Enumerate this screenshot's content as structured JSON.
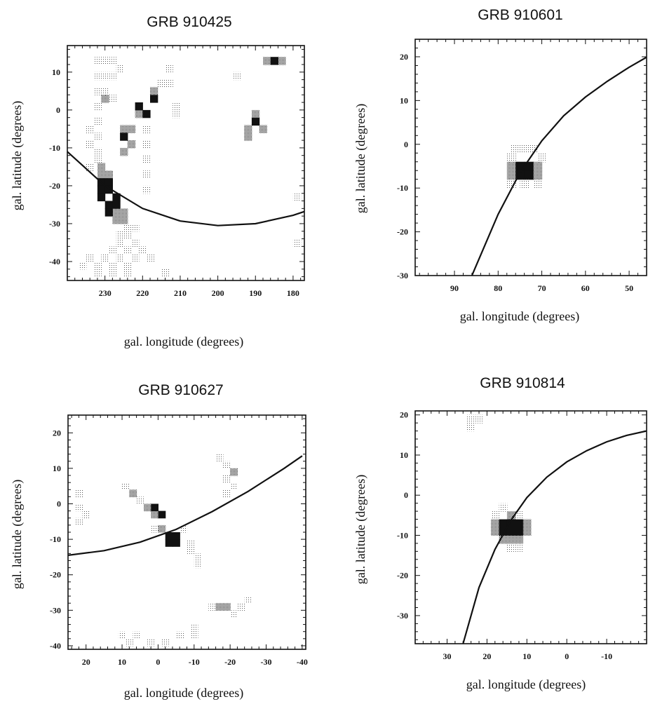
{
  "figure": {
    "background": "#ffffff",
    "ink": "#111111"
  },
  "chart_data": [
    {
      "type": "heatmap",
      "title": "GRB 910425",
      "xlabel": "gal. longitude (degrees)",
      "ylabel": "gal. latitude (degrees)",
      "xlim": [
        240,
        177
      ],
      "ylim": [
        -45,
        17
      ],
      "xticks": [
        230,
        220,
        210,
        200,
        190,
        180
      ],
      "yticks": [
        10,
        0,
        -10,
        -20,
        -30,
        -40
      ],
      "curve": [
        [
          240,
          -11
        ],
        [
          230,
          -20
        ],
        [
          220,
          -26
        ],
        [
          210,
          -29.3
        ],
        [
          200,
          -30.5
        ],
        [
          190,
          -30
        ],
        [
          180,
          -27.8
        ],
        [
          177,
          -26.8
        ]
      ],
      "cells": [
        [
          232,
          13,
          1
        ],
        [
          230,
          13,
          1
        ],
        [
          228,
          13,
          1
        ],
        [
          226,
          11,
          1
        ],
        [
          232,
          9,
          1
        ],
        [
          230,
          9,
          1
        ],
        [
          228,
          9,
          1
        ],
        [
          230,
          5,
          1
        ],
        [
          232,
          5,
          1
        ],
        [
          230,
          3,
          2
        ],
        [
          228,
          3,
          1
        ],
        [
          232,
          1,
          1
        ],
        [
          232,
          -3,
          1
        ],
        [
          234,
          -5,
          1
        ],
        [
          232,
          -7,
          1
        ],
        [
          234,
          -9,
          1
        ],
        [
          232,
          -11,
          1
        ],
        [
          232,
          -13,
          1
        ],
        [
          234,
          -15,
          1
        ],
        [
          231,
          -15,
          2
        ],
        [
          231,
          -17,
          2
        ],
        [
          229,
          -17,
          2
        ],
        [
          231,
          -19,
          3
        ],
        [
          229,
          -19,
          3
        ],
        [
          231,
          -21,
          3
        ],
        [
          229,
          -21,
          3
        ],
        [
          231,
          -23,
          3
        ],
        [
          227,
          -23,
          3
        ],
        [
          229,
          -25,
          3
        ],
        [
          227,
          -25,
          3
        ],
        [
          229,
          -27,
          3
        ],
        [
          227,
          -27,
          2
        ],
        [
          225,
          -27,
          2
        ],
        [
          227,
          -29,
          2
        ],
        [
          225,
          -29,
          2
        ],
        [
          224,
          -31,
          1
        ],
        [
          222,
          -31,
          1
        ],
        [
          226,
          -33,
          1
        ],
        [
          224,
          -33,
          1
        ],
        [
          222,
          -35,
          1
        ],
        [
          226,
          -35,
          1
        ],
        [
          228,
          -37,
          1
        ],
        [
          224,
          -37,
          1
        ],
        [
          220,
          -37,
          1
        ],
        [
          234,
          -39,
          1
        ],
        [
          230,
          -39,
          1
        ],
        [
          226,
          -39,
          1
        ],
        [
          222,
          -39,
          1
        ],
        [
          218,
          -39,
          1
        ],
        [
          236,
          -41,
          1
        ],
        [
          232,
          -41,
          1
        ],
        [
          228,
          -41,
          1
        ],
        [
          224,
          -41,
          1
        ],
        [
          232,
          -43,
          1
        ],
        [
          228,
          -43,
          1
        ],
        [
          224,
          -43,
          1
        ],
        [
          214,
          -43,
          1
        ],
        [
          225,
          -5,
          2
        ],
        [
          225,
          -7,
          3
        ],
        [
          223,
          -5,
          2
        ],
        [
          223,
          -9,
          2
        ],
        [
          225,
          -11,
          2
        ],
        [
          221,
          -1,
          2
        ],
        [
          219,
          -1,
          3
        ],
        [
          221,
          1,
          3
        ],
        [
          217,
          3,
          3
        ],
        [
          217,
          5,
          2
        ],
        [
          215,
          7,
          1
        ],
        [
          213,
          11,
          1
        ],
        [
          213,
          7,
          1
        ],
        [
          219,
          -5,
          1
        ],
        [
          219,
          -9,
          1
        ],
        [
          219,
          -13,
          1
        ],
        [
          219,
          -17,
          1
        ],
        [
          219,
          -21,
          1
        ],
        [
          211,
          -1,
          1
        ],
        [
          211,
          1,
          1
        ],
        [
          195,
          9,
          1
        ],
        [
          192,
          -5,
          2
        ],
        [
          190,
          -3,
          3
        ],
        [
          188,
          -5,
          2
        ],
        [
          190,
          -1,
          2
        ],
        [
          192,
          -7,
          2
        ],
        [
          187,
          13,
          2
        ],
        [
          185,
          13,
          3
        ],
        [
          183,
          13,
          2
        ],
        [
          179,
          -23,
          1
        ],
        [
          179,
          -35,
          1
        ]
      ]
    },
    {
      "type": "heatmap",
      "title": "GRB 910601",
      "xlabel": "gal. longitude (degrees)",
      "ylabel": "gal. latitude (degrees)",
      "xlim": [
        99,
        46
      ],
      "ylim": [
        -30,
        24
      ],
      "xticks": [
        90,
        80,
        70,
        60,
        50
      ],
      "yticks": [
        20,
        10,
        0,
        -10,
        -20,
        -30
      ],
      "curve": [
        [
          86,
          -30
        ],
        [
          80,
          -16
        ],
        [
          75,
          -6.5
        ],
        [
          70,
          0.8
        ],
        [
          65,
          6.5
        ],
        [
          60,
          10.8
        ],
        [
          55,
          14.4
        ],
        [
          50,
          17.6
        ],
        [
          46,
          19.9
        ]
      ],
      "cells": [
        [
          76,
          -1,
          1
        ],
        [
          74,
          -1,
          1
        ],
        [
          72,
          -1,
          1
        ],
        [
          77,
          -3,
          1
        ],
        [
          70,
          -3,
          1
        ],
        [
          77,
          -5,
          2
        ],
        [
          75,
          -5,
          3
        ],
        [
          73,
          -5,
          3
        ],
        [
          71,
          -5,
          2
        ],
        [
          77,
          -7,
          2
        ],
        [
          75,
          -7,
          3
        ],
        [
          73,
          -7,
          3
        ],
        [
          71,
          -7,
          2
        ],
        [
          77,
          -9,
          1
        ],
        [
          74,
          -9,
          1
        ],
        [
          71,
          -9,
          1
        ]
      ]
    },
    {
      "type": "heatmap",
      "title": "GRB 910627",
      "xlabel": "gal. longitude (degrees)",
      "ylabel": "gal. latitude (degrees)",
      "xlim": [
        25,
        -41
      ],
      "ylim": [
        -41,
        25
      ],
      "xticks": [
        20,
        10,
        0,
        -10,
        -20,
        -30,
        -40
      ],
      "yticks": [
        20,
        10,
        0,
        -10,
        -20,
        -30,
        -40
      ],
      "curve": [
        [
          25,
          -14.5
        ],
        [
          15,
          -13.2
        ],
        [
          5,
          -10.8
        ],
        [
          -5,
          -7.2
        ],
        [
          -15,
          -2.2
        ],
        [
          -25,
          3.5
        ],
        [
          -35,
          10
        ],
        [
          -40,
          13.5
        ]
      ],
      "cells": [
        [
          22,
          3,
          1
        ],
        [
          22,
          -1,
          1
        ],
        [
          20,
          -3,
          1
        ],
        [
          22,
          -5,
          1
        ],
        [
          9,
          5,
          1
        ],
        [
          7,
          3,
          2
        ],
        [
          5,
          1,
          1
        ],
        [
          1,
          -1,
          3
        ],
        [
          3,
          -1,
          2
        ],
        [
          -1,
          -3,
          3
        ],
        [
          1,
          -3,
          2
        ],
        [
          -1,
          -7,
          2
        ],
        [
          -3,
          -9,
          3
        ],
        [
          -5,
          -9,
          3
        ],
        [
          -3,
          -11,
          3
        ],
        [
          -5,
          -11,
          3
        ],
        [
          -7,
          -7,
          1
        ],
        [
          -9,
          -11,
          1
        ],
        [
          -9,
          -13,
          1
        ],
        [
          -11,
          -15,
          1
        ],
        [
          -11,
          -17,
          1
        ],
        [
          1,
          -7,
          1
        ],
        [
          -17,
          13,
          1
        ],
        [
          -19,
          11,
          1
        ],
        [
          -19,
          7,
          1
        ],
        [
          -21,
          9,
          2
        ],
        [
          -21,
          5,
          1
        ],
        [
          -19,
          3,
          1
        ],
        [
          -15,
          -29,
          1
        ],
        [
          -17,
          -29,
          2
        ],
        [
          -19,
          -29,
          2
        ],
        [
          -21,
          -31,
          1
        ],
        [
          -23,
          -29,
          1
        ],
        [
          -25,
          -27,
          1
        ],
        [
          10,
          -37,
          1
        ],
        [
          6,
          -37,
          1
        ],
        [
          2,
          -39,
          1
        ],
        [
          -2,
          -39,
          1
        ],
        [
          -6,
          -37,
          1
        ],
        [
          -10,
          -35,
          1
        ],
        [
          -10,
          -37,
          1
        ],
        [
          8,
          -39,
          1
        ]
      ]
    },
    {
      "type": "heatmap",
      "title": "GRB 910814",
      "xlabel": "gal. longitude (degrees)",
      "ylabel": "gal. latitude (degrees)",
      "xlim": [
        38,
        -20
      ],
      "ylim": [
        -37,
        21
      ],
      "xticks": [
        30,
        20,
        10,
        0,
        -10
      ],
      "yticks": [
        20,
        10,
        0,
        -10,
        -20,
        -30
      ],
      "curve": [
        [
          26,
          -37
        ],
        [
          22,
          -23
        ],
        [
          18,
          -13.5
        ],
        [
          14,
          -6.2
        ],
        [
          10,
          -0.6
        ],
        [
          5,
          4.5
        ],
        [
          0,
          8.3
        ],
        [
          -5,
          11.1
        ],
        [
          -10,
          13.3
        ],
        [
          -15,
          14.9
        ],
        [
          -20,
          16
        ]
      ],
      "cells": [
        [
          24,
          19,
          1
        ],
        [
          22,
          19,
          1
        ],
        [
          24,
          17,
          1
        ],
        [
          16,
          -3,
          1
        ],
        [
          18,
          -5,
          1
        ],
        [
          14,
          -5,
          2
        ],
        [
          12,
          -5,
          1
        ],
        [
          18,
          -7,
          2
        ],
        [
          16,
          -7,
          3
        ],
        [
          14,
          -7,
          3
        ],
        [
          12,
          -7,
          3
        ],
        [
          10,
          -7,
          2
        ],
        [
          18,
          -9,
          2
        ],
        [
          16,
          -9,
          3
        ],
        [
          14,
          -9,
          3
        ],
        [
          12,
          -9,
          3
        ],
        [
          10,
          -9,
          2
        ],
        [
          16,
          -11,
          2
        ],
        [
          14,
          -11,
          2
        ],
        [
          12,
          -11,
          2
        ],
        [
          14,
          -13,
          1
        ],
        [
          12,
          -13,
          1
        ]
      ]
    }
  ]
}
